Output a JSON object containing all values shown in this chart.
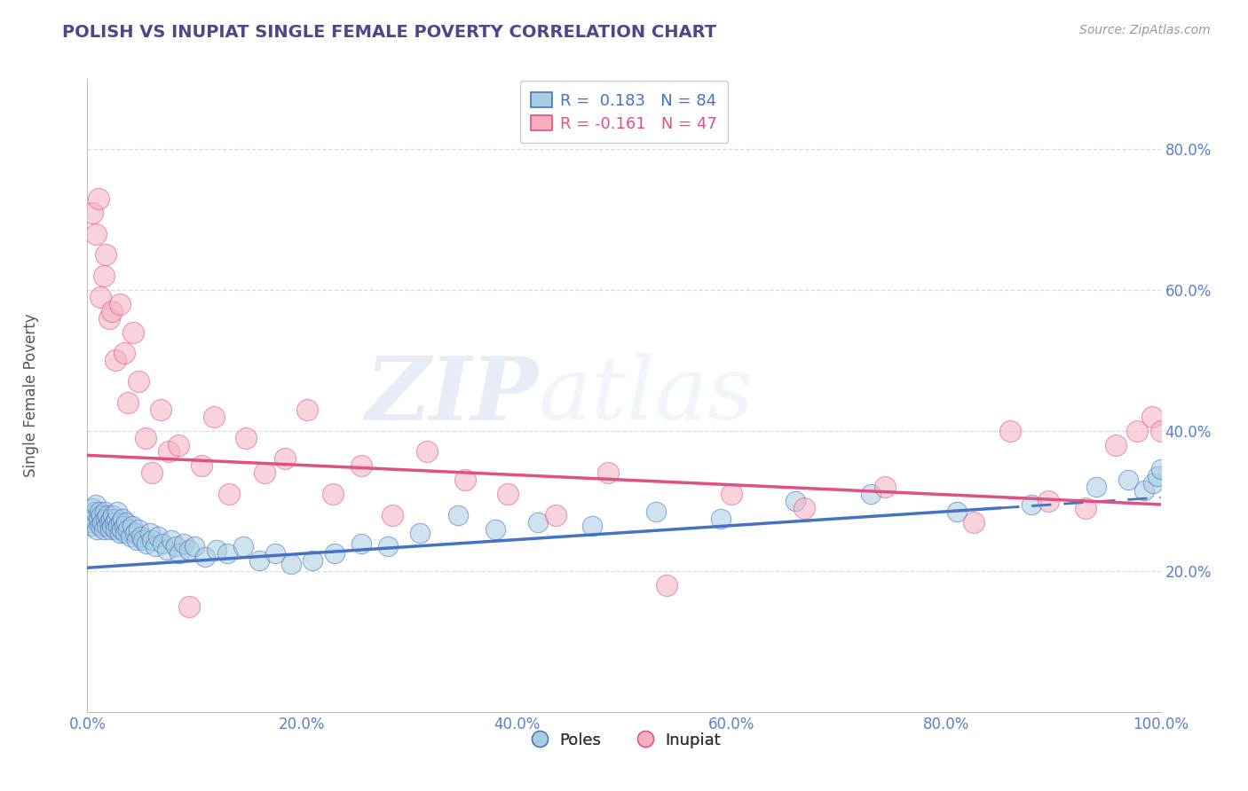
{
  "title": "POLISH VS INUPIAT SINGLE FEMALE POVERTY CORRELATION CHART",
  "source": "Source: ZipAtlas.com",
  "ylabel": "Single Female Poverty",
  "watermark": "ZIPatlas",
  "legend_poles": "Poles",
  "legend_inupiat": "Inupiat",
  "r_poles": 0.183,
  "n_poles": 84,
  "r_inupiat": -0.161,
  "n_inupiat": 47,
  "xlim": [
    0.0,
    1.0
  ],
  "ylim": [
    0.0,
    0.9
  ],
  "xticks": [
    0.0,
    0.2,
    0.4,
    0.6,
    0.8,
    1.0
  ],
  "xticklabels": [
    "0.0%",
    "20.0%",
    "40.0%",
    "60.0%",
    "80.0%",
    "100.0%"
  ],
  "yticks": [
    0.2,
    0.4,
    0.6,
    0.8
  ],
  "yticklabels": [
    "20.0%",
    "40.0%",
    "60.0%",
    "80.0%"
  ],
  "color_poles": "#a8cce0",
  "color_inupiat": "#f5afc0",
  "color_poles_line": "#4472c4",
  "color_inupiat_line": "#e05080",
  "background": "#ffffff",
  "poles_line_start": 0.205,
  "poles_line_end": 0.305,
  "inupiat_line_start": 0.365,
  "inupiat_line_end": 0.295,
  "poles_x": [
    0.002,
    0.003,
    0.004,
    0.005,
    0.006,
    0.007,
    0.008,
    0.009,
    0.01,
    0.011,
    0.012,
    0.013,
    0.014,
    0.015,
    0.016,
    0.017,
    0.018,
    0.019,
    0.02,
    0.021,
    0.022,
    0.023,
    0.024,
    0.025,
    0.026,
    0.027,
    0.028,
    0.029,
    0.03,
    0.031,
    0.032,
    0.033,
    0.034,
    0.035,
    0.036,
    0.038,
    0.04,
    0.042,
    0.044,
    0.046,
    0.048,
    0.05,
    0.052,
    0.055,
    0.058,
    0.06,
    0.063,
    0.066,
    0.07,
    0.074,
    0.078,
    0.082,
    0.086,
    0.09,
    0.095,
    0.1,
    0.11,
    0.12,
    0.13,
    0.145,
    0.16,
    0.175,
    0.19,
    0.21,
    0.23,
    0.255,
    0.28,
    0.31,
    0.345,
    0.38,
    0.42,
    0.47,
    0.53,
    0.59,
    0.66,
    0.73,
    0.81,
    0.88,
    0.94,
    0.97,
    0.985,
    0.993,
    0.997,
    1.0
  ],
  "poles_y": [
    0.27,
    0.28,
    0.265,
    0.29,
    0.275,
    0.285,
    0.295,
    0.26,
    0.275,
    0.285,
    0.265,
    0.28,
    0.27,
    0.26,
    0.285,
    0.275,
    0.265,
    0.28,
    0.27,
    0.26,
    0.275,
    0.265,
    0.28,
    0.27,
    0.26,
    0.275,
    0.285,
    0.265,
    0.255,
    0.27,
    0.26,
    0.275,
    0.265,
    0.255,
    0.27,
    0.26,
    0.25,
    0.265,
    0.255,
    0.245,
    0.26,
    0.25,
    0.245,
    0.24,
    0.255,
    0.245,
    0.235,
    0.25,
    0.24,
    0.23,
    0.245,
    0.235,
    0.225,
    0.24,
    0.23,
    0.235,
    0.22,
    0.23,
    0.225,
    0.235,
    0.215,
    0.225,
    0.21,
    0.215,
    0.225,
    0.24,
    0.235,
    0.255,
    0.28,
    0.26,
    0.27,
    0.265,
    0.285,
    0.275,
    0.3,
    0.31,
    0.285,
    0.295,
    0.32,
    0.33,
    0.315,
    0.325,
    0.335,
    0.345
  ],
  "inupiat_x": [
    0.005,
    0.008,
    0.01,
    0.012,
    0.015,
    0.017,
    0.02,
    0.023,
    0.026,
    0.03,
    0.034,
    0.038,
    0.043,
    0.048,
    0.054,
    0.06,
    0.068,
    0.076,
    0.085,
    0.095,
    0.106,
    0.118,
    0.132,
    0.148,
    0.165,
    0.184,
    0.205,
    0.229,
    0.255,
    0.284,
    0.316,
    0.352,
    0.392,
    0.436,
    0.485,
    0.54,
    0.6,
    0.668,
    0.743,
    0.826,
    0.86,
    0.895,
    0.93,
    0.958,
    0.978,
    0.992,
    1.0
  ],
  "inupiat_y": [
    0.71,
    0.68,
    0.73,
    0.59,
    0.62,
    0.65,
    0.56,
    0.57,
    0.5,
    0.58,
    0.51,
    0.44,
    0.54,
    0.47,
    0.39,
    0.34,
    0.43,
    0.37,
    0.38,
    0.15,
    0.35,
    0.42,
    0.31,
    0.39,
    0.34,
    0.36,
    0.43,
    0.31,
    0.35,
    0.28,
    0.37,
    0.33,
    0.31,
    0.28,
    0.34,
    0.18,
    0.31,
    0.29,
    0.32,
    0.27,
    0.4,
    0.3,
    0.29,
    0.38,
    0.4,
    0.42,
    0.4
  ]
}
